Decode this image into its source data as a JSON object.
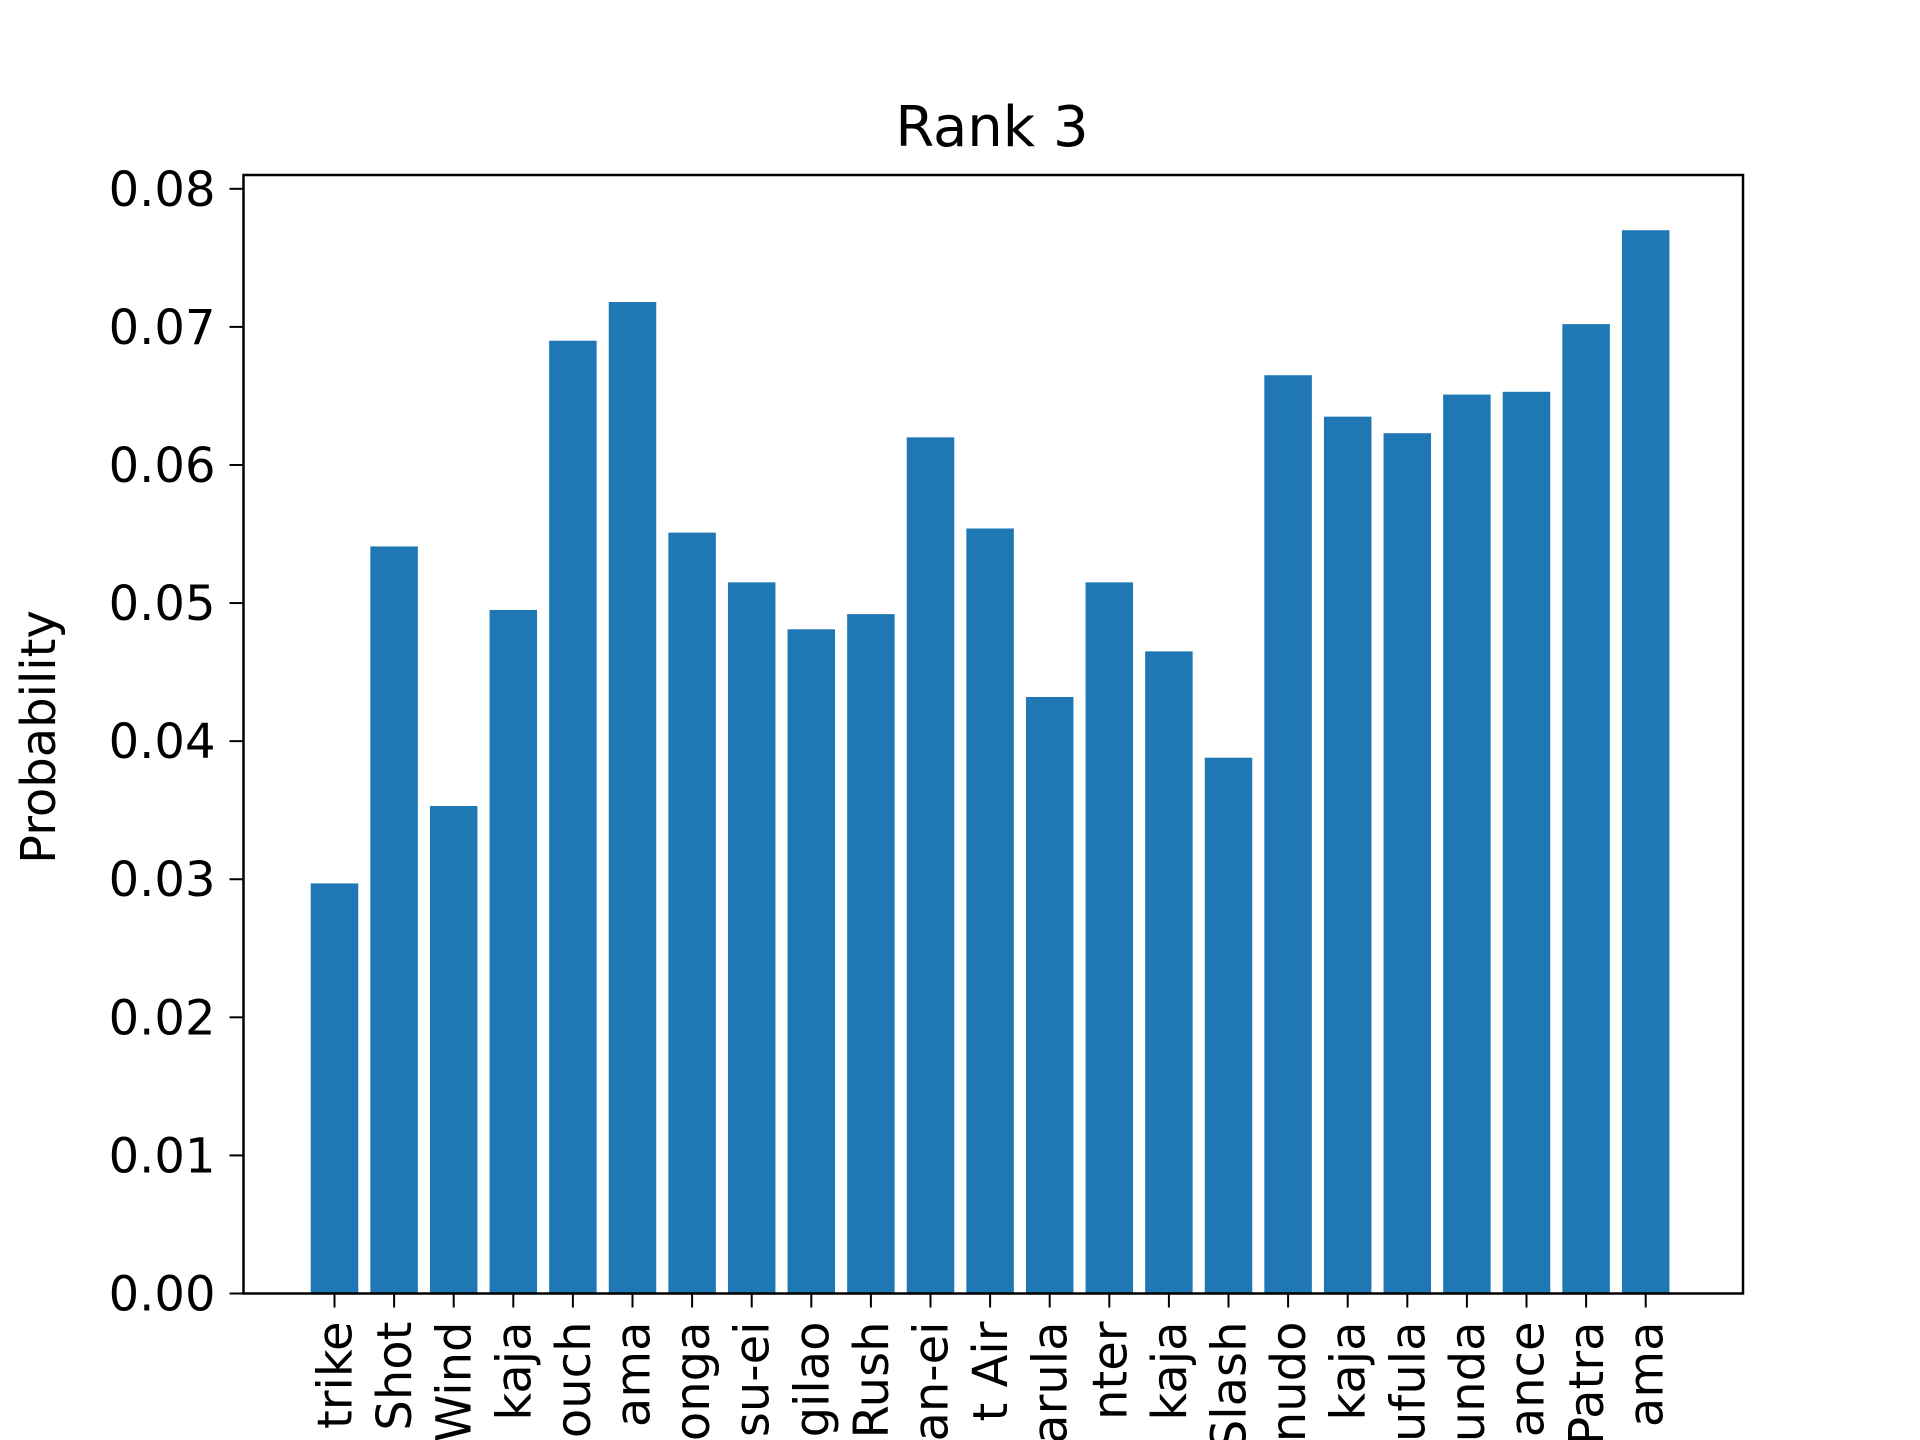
{
  "chart_data": {
    "type": "bar",
    "title": "Rank 3",
    "xlabel": "",
    "ylabel": "Probability",
    "ylim": [
      0,
      0.081
    ],
    "y_ticks": [
      "0.00",
      "0.01",
      "0.02",
      "0.03",
      "0.04",
      "0.05",
      "0.06",
      "0.07",
      "0.08"
    ],
    "categories": [
      "trike",
      "Shot",
      "Wind",
      "kaja",
      "ouch",
      "ama",
      "onga",
      "su-ei",
      "gilao",
      "Rush",
      "an-ei",
      "t Air",
      "arula",
      "nter",
      "kaja",
      "Slash",
      "nudo",
      "kaja",
      "ufula",
      "unda",
      "ance",
      "Patra",
      "ama"
    ],
    "values": [
      0.0297,
      0.0541,
      0.0353,
      0.0495,
      0.069,
      0.0718,
      0.0551,
      0.0515,
      0.0481,
      0.0492,
      0.062,
      0.0554,
      0.0432,
      0.0515,
      0.0465,
      0.0388,
      0.0665,
      0.0635,
      0.0623,
      0.0651,
      0.0653,
      0.0702,
      0.077
    ],
    "bar_color": "#1f77b4",
    "grid": false,
    "legend": "none"
  }
}
